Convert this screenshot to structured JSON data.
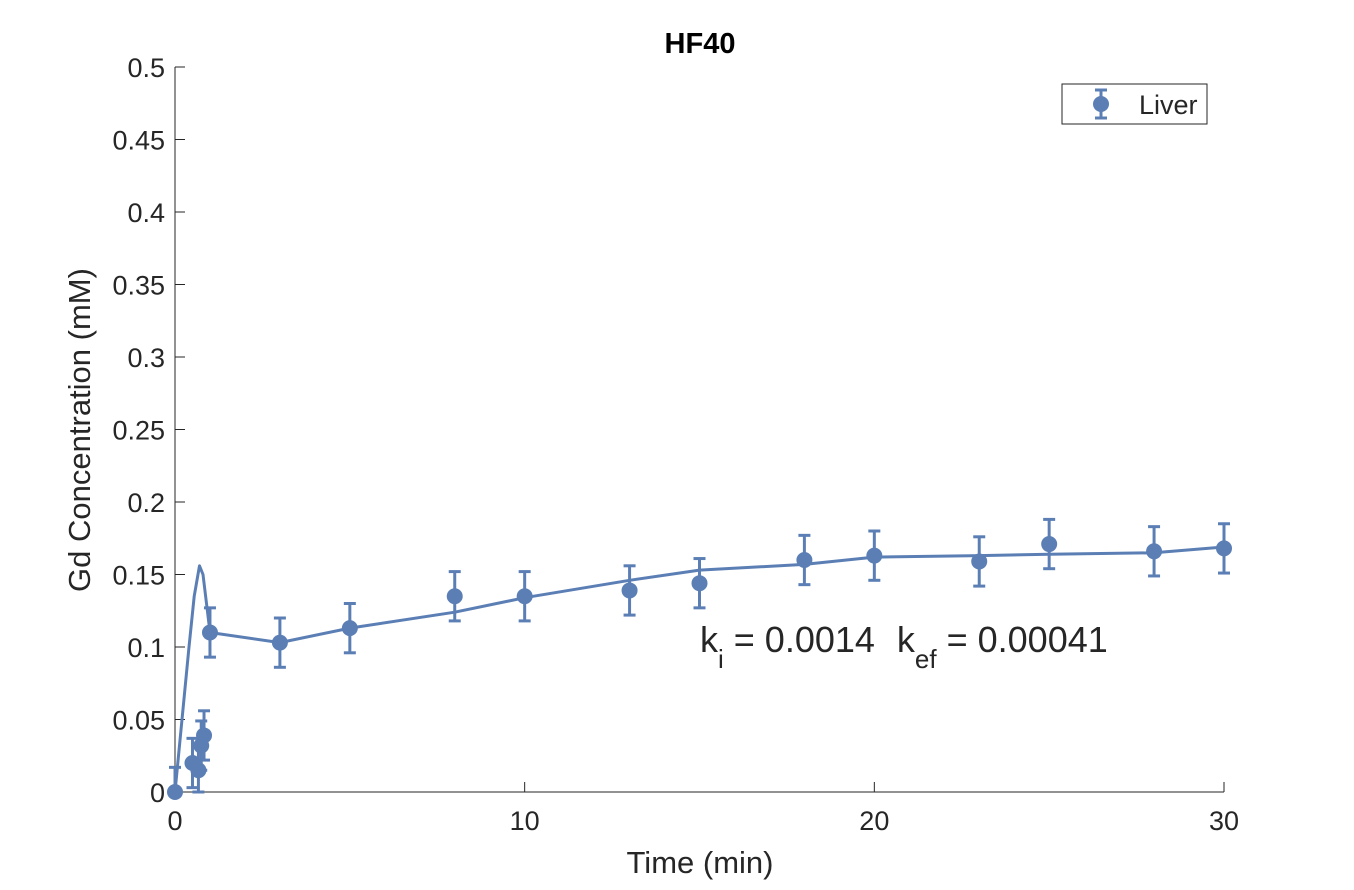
{
  "chart_data": {
    "type": "scatter",
    "title": "HF40",
    "xlabel": "Time (min)",
    "ylabel": "Gd Concentration (mM)",
    "xlim": [
      0,
      30
    ],
    "ylim": [
      0,
      0.5
    ],
    "xticks": [
      "0",
      "10",
      "20",
      "30"
    ],
    "yticks": [
      "0",
      "0.05",
      "0.1",
      "0.15",
      "0.2",
      "0.25",
      "0.3",
      "0.35",
      "0.4",
      "0.45",
      "0.5"
    ],
    "grid": false,
    "legend_position": "top-right",
    "color": "#5b7fb5",
    "series": [
      {
        "name": "Liver",
        "x": [
          0,
          0.5,
          0.67,
          0.75,
          0.83,
          1,
          3,
          5,
          8,
          10,
          13,
          15,
          18,
          20,
          23,
          25,
          28,
          30
        ],
        "y": [
          0,
          0.02,
          0.015,
          0.032,
          0.039,
          0.11,
          0.103,
          0.113,
          0.135,
          0.135,
          0.139,
          0.144,
          0.16,
          0.163,
          0.159,
          0.171,
          0.166,
          0.168
        ],
        "error": [
          0.017,
          0.017,
          0.017,
          0.017,
          0.017,
          0.017,
          0.017,
          0.017,
          0.017,
          0.017,
          0.017,
          0.017,
          0.017,
          0.017,
          0.017,
          0.017,
          0.017,
          0.017
        ]
      }
    ],
    "fit_curve": {
      "x": [
        0,
        0.2,
        0.4,
        0.55,
        0.7,
        0.8,
        0.9,
        1,
        3,
        5,
        8,
        10,
        13,
        15,
        18,
        20,
        23,
        25,
        28,
        30
      ],
      "y": [
        0,
        0.05,
        0.1,
        0.135,
        0.156,
        0.15,
        0.13,
        0.11,
        0.103,
        0.113,
        0.124,
        0.134,
        0.146,
        0.153,
        0.157,
        0.162,
        0.163,
        0.164,
        0.165,
        0.169
      ]
    },
    "annotation": {
      "k_i_symbol": "k",
      "k_i_sub": "i",
      "k_i_value": " = 0.0014",
      "k_ef_symbol": "k",
      "k_ef_sub": "ef",
      "k_ef_value": " = 0.00041"
    }
  }
}
